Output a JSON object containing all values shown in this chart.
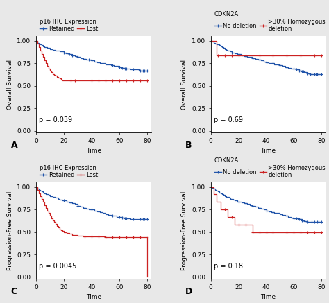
{
  "panels": [
    {
      "label": "A",
      "title": "p16 IHC Expression",
      "legend_entries": [
        "Retained",
        "Lost"
      ],
      "ylabel": "Overall Survival",
      "xlabel": "Time",
      "pvalue": "p = 0.039",
      "blue_x": [
        0,
        1,
        2,
        3,
        4,
        5,
        6,
        7,
        8,
        9,
        10,
        11,
        12,
        13,
        14,
        15,
        16,
        17,
        18,
        19,
        20,
        22,
        24,
        26,
        28,
        30,
        32,
        34,
        36,
        38,
        40,
        42,
        44,
        46,
        48,
        50,
        52,
        54,
        56,
        58,
        60,
        62,
        64,
        66,
        68,
        70,
        72,
        74,
        76,
        78,
        80
      ],
      "blue_y": [
        1.0,
        0.98,
        0.97,
        0.96,
        0.95,
        0.94,
        0.93,
        0.93,
        0.92,
        0.92,
        0.91,
        0.91,
        0.9,
        0.9,
        0.89,
        0.89,
        0.89,
        0.88,
        0.88,
        0.88,
        0.87,
        0.86,
        0.85,
        0.84,
        0.83,
        0.82,
        0.81,
        0.8,
        0.79,
        0.79,
        0.78,
        0.77,
        0.76,
        0.75,
        0.75,
        0.74,
        0.74,
        0.73,
        0.72,
        0.72,
        0.71,
        0.7,
        0.69,
        0.69,
        0.68,
        0.68,
        0.68,
        0.67,
        0.67,
        0.67,
        0.67
      ],
      "blue_censors": [
        20,
        22,
        24,
        26,
        30,
        35,
        38,
        40,
        55,
        60,
        62,
        63,
        64,
        65,
        70,
        75,
        76,
        77,
        78,
        79,
        80
      ],
      "red_x": [
        0,
        1,
        2,
        3,
        4,
        5,
        6,
        7,
        8,
        9,
        10,
        11,
        12,
        13,
        14,
        15,
        16,
        17,
        18,
        19,
        20,
        25,
        30,
        35,
        40,
        50,
        55,
        60,
        65,
        70,
        75,
        80
      ],
      "red_y": [
        1.0,
        0.97,
        0.93,
        0.89,
        0.85,
        0.82,
        0.78,
        0.75,
        0.72,
        0.69,
        0.67,
        0.65,
        0.63,
        0.62,
        0.61,
        0.6,
        0.59,
        0.58,
        0.57,
        0.56,
        0.56,
        0.56,
        0.56,
        0.56,
        0.56,
        0.56,
        0.56,
        0.56,
        0.56,
        0.56,
        0.56,
        0.56
      ],
      "red_censors": [
        25,
        28,
        40,
        45,
        50,
        55,
        60,
        65,
        70,
        75,
        80
      ]
    },
    {
      "label": "B",
      "title": "CDKN2A",
      "legend_entries": [
        "No deletion",
        ">30% Homozygous\ndeletion"
      ],
      "ylabel": "Overall Survival",
      "xlabel": "Time",
      "pvalue": "p = 0.69",
      "blue_x": [
        0,
        1,
        2,
        3,
        4,
        5,
        6,
        7,
        8,
        9,
        10,
        11,
        12,
        13,
        14,
        15,
        16,
        17,
        18,
        19,
        20,
        22,
        24,
        26,
        28,
        30,
        32,
        34,
        36,
        38,
        40,
        42,
        44,
        46,
        48,
        50,
        52,
        54,
        56,
        58,
        60,
        62,
        64,
        66,
        68,
        70,
        72,
        74,
        76,
        78,
        80
      ],
      "blue_y": [
        1.0,
        0.99,
        0.98,
        0.97,
        0.96,
        0.96,
        0.95,
        0.94,
        0.93,
        0.92,
        0.91,
        0.9,
        0.89,
        0.89,
        0.88,
        0.87,
        0.87,
        0.86,
        0.86,
        0.85,
        0.85,
        0.84,
        0.83,
        0.82,
        0.82,
        0.81,
        0.8,
        0.79,
        0.78,
        0.77,
        0.76,
        0.75,
        0.75,
        0.74,
        0.74,
        0.73,
        0.72,
        0.71,
        0.7,
        0.69,
        0.69,
        0.68,
        0.67,
        0.66,
        0.65,
        0.64,
        0.63,
        0.63,
        0.63,
        0.63,
        0.63
      ],
      "blue_censors": [
        15,
        20,
        25,
        30,
        35,
        40,
        45,
        50,
        55,
        60,
        62,
        63,
        64,
        65,
        66,
        67,
        68,
        70,
        72,
        73,
        75,
        76,
        77,
        78,
        80
      ],
      "red_x": [
        0,
        1,
        2,
        3,
        4,
        5,
        10,
        15,
        20,
        25,
        30,
        35,
        40,
        45,
        50,
        55,
        60,
        65,
        70,
        75,
        80
      ],
      "red_y": [
        1.0,
        1.0,
        1.0,
        1.0,
        0.84,
        0.84,
        0.84,
        0.84,
        0.84,
        0.84,
        0.84,
        0.84,
        0.84,
        0.84,
        0.84,
        0.84,
        0.84,
        0.84,
        0.84,
        0.84,
        0.84
      ],
      "red_censors": [
        5,
        10,
        15,
        20,
        25,
        35,
        45,
        55,
        65,
        75,
        80
      ]
    },
    {
      "label": "C",
      "title": "p16 IHC Expression",
      "legend_entries": [
        "Retained",
        "Lost"
      ],
      "ylabel": "Progression-Free Survival",
      "xlabel": "Time",
      "pvalue": "p = 0.0045",
      "blue_x": [
        0,
        1,
        2,
        3,
        4,
        5,
        6,
        7,
        8,
        9,
        10,
        11,
        12,
        13,
        14,
        15,
        16,
        17,
        18,
        19,
        20,
        22,
        24,
        26,
        28,
        30,
        32,
        34,
        36,
        38,
        40,
        42,
        44,
        46,
        48,
        50,
        52,
        54,
        56,
        58,
        60,
        62,
        64,
        66,
        68,
        70,
        72,
        74,
        76,
        78,
        80
      ],
      "blue_y": [
        1.0,
        0.98,
        0.97,
        0.96,
        0.95,
        0.94,
        0.93,
        0.92,
        0.92,
        0.91,
        0.9,
        0.9,
        0.89,
        0.89,
        0.88,
        0.88,
        0.87,
        0.86,
        0.86,
        0.85,
        0.85,
        0.84,
        0.83,
        0.82,
        0.81,
        0.79,
        0.78,
        0.77,
        0.76,
        0.75,
        0.75,
        0.74,
        0.73,
        0.72,
        0.71,
        0.7,
        0.69,
        0.68,
        0.68,
        0.67,
        0.67,
        0.66,
        0.65,
        0.65,
        0.64,
        0.64,
        0.64,
        0.64,
        0.64,
        0.64,
        0.64
      ],
      "blue_censors": [
        20,
        25,
        30,
        35,
        40,
        55,
        60,
        62,
        63,
        64,
        65,
        70,
        75,
        76,
        77,
        78,
        79,
        80
      ],
      "red_x": [
        0,
        1,
        2,
        3,
        4,
        5,
        6,
        7,
        8,
        9,
        10,
        11,
        12,
        13,
        14,
        15,
        16,
        17,
        18,
        19,
        20,
        22,
        24,
        26,
        28,
        30,
        32,
        34,
        35,
        40,
        45,
        50,
        55,
        60,
        65,
        70,
        75,
        80
      ],
      "red_y": [
        1.0,
        0.97,
        0.93,
        0.9,
        0.87,
        0.84,
        0.8,
        0.77,
        0.74,
        0.71,
        0.68,
        0.65,
        0.63,
        0.61,
        0.59,
        0.57,
        0.55,
        0.53,
        0.52,
        0.51,
        0.5,
        0.49,
        0.48,
        0.47,
        0.47,
        0.46,
        0.46,
        0.45,
        0.45,
        0.45,
        0.45,
        0.44,
        0.44,
        0.44,
        0.44,
        0.44,
        0.44,
        0.44
      ],
      "red_censors": [
        35,
        40,
        45,
        50,
        55,
        60,
        65,
        70,
        75
      ],
      "red_drop_end": true
    },
    {
      "label": "D",
      "title": "CDKN2A",
      "legend_entries": [
        "No deletion",
        ">30% Homozygous\ndeletion"
      ],
      "ylabel": "Progression-Free Survival",
      "xlabel": "Time",
      "pvalue": "p = 0.18",
      "blue_x": [
        0,
        1,
        2,
        3,
        4,
        5,
        6,
        7,
        8,
        9,
        10,
        11,
        12,
        13,
        14,
        15,
        16,
        17,
        18,
        19,
        20,
        22,
        24,
        26,
        28,
        30,
        32,
        34,
        36,
        38,
        40,
        42,
        44,
        46,
        48,
        50,
        52,
        54,
        56,
        58,
        60,
        62,
        64,
        66,
        68,
        70,
        72,
        74,
        76,
        78,
        80
      ],
      "blue_y": [
        1.0,
        0.99,
        0.98,
        0.97,
        0.96,
        0.95,
        0.94,
        0.93,
        0.92,
        0.91,
        0.9,
        0.89,
        0.89,
        0.88,
        0.87,
        0.87,
        0.86,
        0.85,
        0.85,
        0.84,
        0.84,
        0.83,
        0.82,
        0.81,
        0.8,
        0.79,
        0.78,
        0.77,
        0.76,
        0.75,
        0.74,
        0.73,
        0.72,
        0.71,
        0.71,
        0.7,
        0.69,
        0.68,
        0.67,
        0.66,
        0.65,
        0.65,
        0.64,
        0.63,
        0.62,
        0.61,
        0.61,
        0.61,
        0.61,
        0.61,
        0.61
      ],
      "blue_censors": [
        20,
        25,
        30,
        35,
        40,
        45,
        55,
        60,
        62,
        63,
        64,
        65,
        66,
        68,
        70,
        73,
        75,
        77,
        78,
        80
      ],
      "red_x": [
        0,
        1,
        2,
        3,
        4,
        5,
        6,
        7,
        8,
        9,
        10,
        11,
        12,
        13,
        14,
        15,
        16,
        17,
        18,
        19,
        20,
        25,
        30,
        35,
        40,
        45,
        50,
        55,
        60,
        65,
        70,
        75,
        80
      ],
      "red_y": [
        1.0,
        1.0,
        0.92,
        0.92,
        0.84,
        0.84,
        0.84,
        0.75,
        0.75,
        0.75,
        0.75,
        0.75,
        0.67,
        0.67,
        0.67,
        0.67,
        0.67,
        0.58,
        0.58,
        0.58,
        0.58,
        0.58,
        0.5,
        0.5,
        0.5,
        0.5,
        0.5,
        0.5,
        0.5,
        0.5,
        0.5,
        0.5,
        0.5
      ],
      "red_censors": [
        10,
        15,
        20,
        25,
        30,
        35,
        40,
        45,
        55,
        60,
        65,
        70,
        75,
        80
      ]
    }
  ],
  "blue_color": "#2255aa",
  "red_color": "#cc2222",
  "background_color": "#e8e8e8",
  "panel_bg": "#ffffff",
  "fontsize": 6.5,
  "label_fontsize": 9,
  "pvalue_fontsize": 7,
  "legend_fontsize": 6.0,
  "legend_title_fontsize": 6.0
}
